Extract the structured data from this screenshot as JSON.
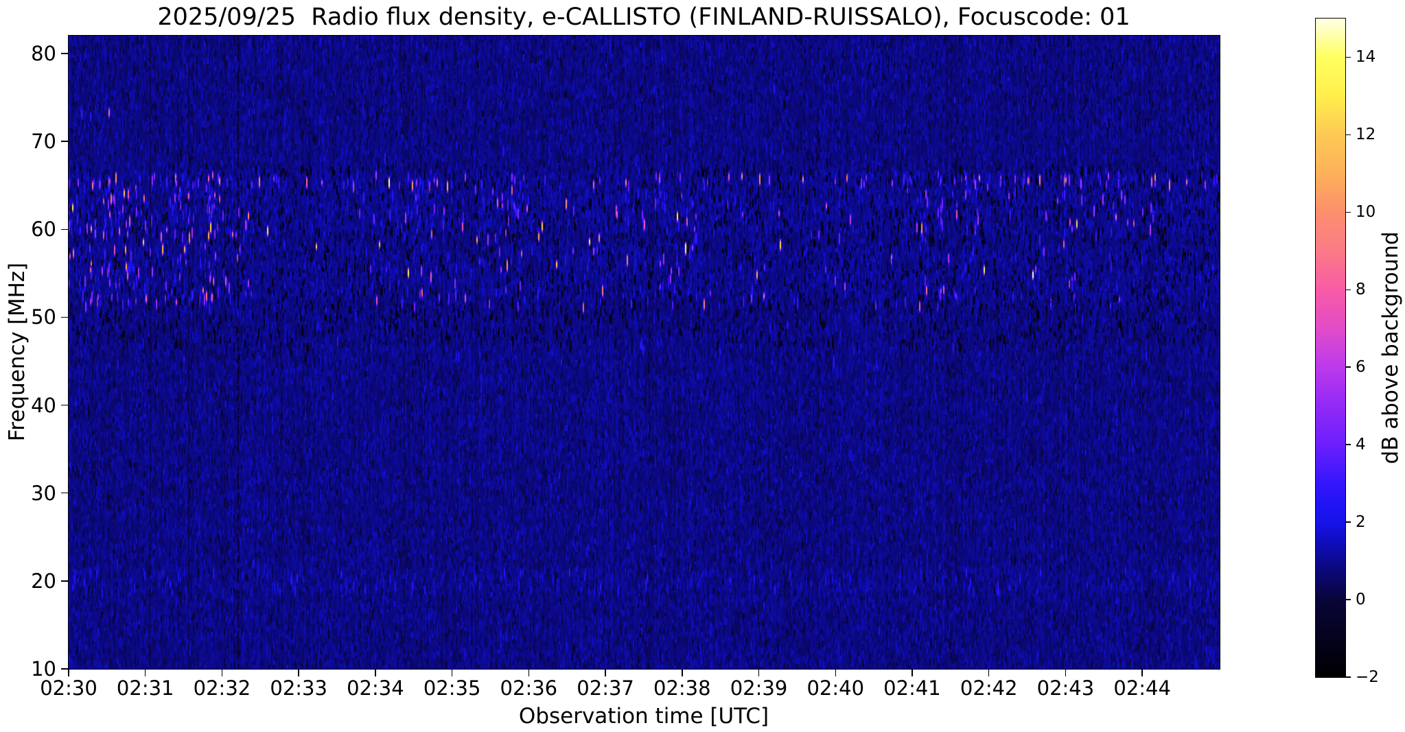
{
  "page": {
    "background": "#ffffff"
  },
  "chart_data": {
    "type": "heatmap",
    "subtype": "radio_spectrogram",
    "title": "2025/09/25  Radio flux density, e-CALLISTO (FINLAND-RUISSALO), Focuscode: 01",
    "xlabel": "Observation time [UTC]",
    "ylabel": "Frequency [MHz]",
    "x_ticks": [
      {
        "minute": 0,
        "label": "02:30"
      },
      {
        "minute": 1,
        "label": "02:31"
      },
      {
        "minute": 2,
        "label": "02:32"
      },
      {
        "minute": 3,
        "label": "02:33"
      },
      {
        "minute": 4,
        "label": "02:34"
      },
      {
        "minute": 5,
        "label": "02:35"
      },
      {
        "minute": 6,
        "label": "02:36"
      },
      {
        "minute": 7,
        "label": "02:37"
      },
      {
        "minute": 8,
        "label": "02:38"
      },
      {
        "minute": 9,
        "label": "02:39"
      },
      {
        "minute": 10,
        "label": "02:40"
      },
      {
        "minute": 11,
        "label": "02:41"
      },
      {
        "minute": 12,
        "label": "02:42"
      },
      {
        "minute": 13,
        "label": "02:43"
      },
      {
        "minute": 14,
        "label": "02:44"
      }
    ],
    "x_range_minutes": [
      0,
      15.01
    ],
    "y_ticks": [
      80,
      70,
      60,
      50,
      40,
      30,
      20,
      10
    ],
    "y_range_mhz": [
      10,
      82.03
    ],
    "grid": false,
    "colorbar": {
      "label": "dB above background",
      "range": [
        -2,
        15
      ],
      "ticks": [
        {
          "value": 14,
          "label": "14"
        },
        {
          "value": 12,
          "label": "12"
        },
        {
          "value": 10,
          "label": "10"
        },
        {
          "value": 8,
          "label": "8"
        },
        {
          "value": 6,
          "label": "6"
        },
        {
          "value": 4,
          "label": "4"
        },
        {
          "value": 2,
          "label": "2"
        },
        {
          "value": 0,
          "label": "0"
        },
        {
          "value": -2,
          "label": "−2"
        }
      ],
      "colormap_stops": [
        [
          -2,
          "#000000"
        ],
        [
          -1,
          "#04021e"
        ],
        [
          0,
          "#090538"
        ],
        [
          0.5,
          "#0a0766"
        ],
        [
          1,
          "#0c0a8e"
        ],
        [
          1.5,
          "#100dc0"
        ],
        [
          2,
          "#1713e8"
        ],
        [
          2.5,
          "#2213f6"
        ],
        [
          3,
          "#3416fb"
        ],
        [
          4,
          "#6c1ffc"
        ],
        [
          5,
          "#9329f7"
        ],
        [
          6,
          "#bc3aeb"
        ],
        [
          7,
          "#e14cc8"
        ],
        [
          8,
          "#f95ba5"
        ],
        [
          9,
          "#fb7a87"
        ],
        [
          10,
          "#fc8f6c"
        ],
        [
          11,
          "#fdb15a"
        ],
        [
          12,
          "#fec954"
        ],
        [
          13,
          "#ffef4c"
        ],
        [
          14,
          "#ffff60"
        ],
        [
          15,
          "#ffffe6"
        ]
      ]
    },
    "noise_model": {
      "seed": 20250925,
      "background_mean_db": 0.85,
      "background_sigma_db": 0.33,
      "glow_bands": [
        {
          "f_lo": 52.0,
          "f_hi": 58.2,
          "boost": 0.22
        },
        {
          "f_lo": 59.5,
          "f_hi": 66.5,
          "boost": 0.25
        },
        {
          "f_lo": 18.8,
          "f_hi": 21.8,
          "boost": 0.12
        }
      ],
      "dark_dashes": [
        {
          "count": 2200,
          "f_lo": 47.0,
          "f_hi": 67.5,
          "v_lo": -1.8,
          "v_hi": -0.1
        },
        {
          "count": 260,
          "f_lo": 10.0,
          "f_hi": 47.0,
          "v_lo": -0.7,
          "v_hi": 0.1
        },
        {
          "count": 190,
          "f_lo": 67.5,
          "f_hi": 82.0,
          "v_lo": -0.7,
          "v_hi": 0.1
        }
      ],
      "dark_columns": [
        {
          "t_min": 1.07,
          "strength": 0.55
        },
        {
          "t_min": 1.57,
          "strength": 0.5
        },
        {
          "t_min": 2.21,
          "strength": 1.15
        },
        {
          "t_min": 4.37,
          "strength": 0.45
        },
        {
          "t_min": 5.3,
          "strength": 0.35
        },
        {
          "t_min": 7.9,
          "strength": 0.4
        },
        {
          "t_min": 9.65,
          "strength": 0.35
        },
        {
          "t_min": 11.45,
          "strength": 0.4
        },
        {
          "t_min": 13.2,
          "strength": 0.35
        }
      ],
      "speck_groups": [
        {
          "name": "band-mid",
          "count": 200,
          "f_lo": 51.5,
          "f_hi": 58.5,
          "v_lo": 2.2,
          "v_hi": 6.5,
          "cluster": true
        },
        {
          "name": "band-upper",
          "count": 260,
          "f_lo": 59.3,
          "f_hi": 66.6,
          "v_lo": 2.2,
          "v_hi": 6.5,
          "cluster": true
        },
        {
          "name": "bright",
          "count": 50,
          "f_lo": 51.5,
          "f_hi": 66.6,
          "v_lo": 6.5,
          "v_hi": 11.0,
          "cluster": true
        },
        {
          "name": "vivid",
          "count": 14,
          "f_lo": 53.0,
          "f_hi": 66.4,
          "v_lo": 11.0,
          "v_hi": 15.0,
          "cluster": false
        },
        {
          "name": "line-66mhz",
          "count": 85,
          "f_lo": 65.3,
          "f_hi": 66.4,
          "v_lo": 3.0,
          "v_hi": 10.0,
          "cluster": false
        },
        {
          "name": "hf-20mhz",
          "count": 130,
          "f_lo": 18.9,
          "f_hi": 21.7,
          "v_lo": 1.6,
          "v_hi": 3.0,
          "cluster": false
        },
        {
          "name": "faint-any",
          "count": 120,
          "f_lo": 45.0,
          "f_hi": 70.0,
          "v_lo": 1.8,
          "v_hi": 3.0,
          "cluster": false
        }
      ],
      "explicit_specks": [
        {
          "t_min": 0.17,
          "f_mhz": 73.6,
          "v_db": 3.2
        },
        {
          "t_min": 0.28,
          "f_mhz": 73.2,
          "v_db": 2.6
        },
        {
          "t_min": 0.52,
          "f_mhz": 73.7,
          "v_db": 7.0
        },
        {
          "t_min": 9.2,
          "f_mhz": 76.4,
          "v_db": 2.8
        }
      ]
    }
  }
}
